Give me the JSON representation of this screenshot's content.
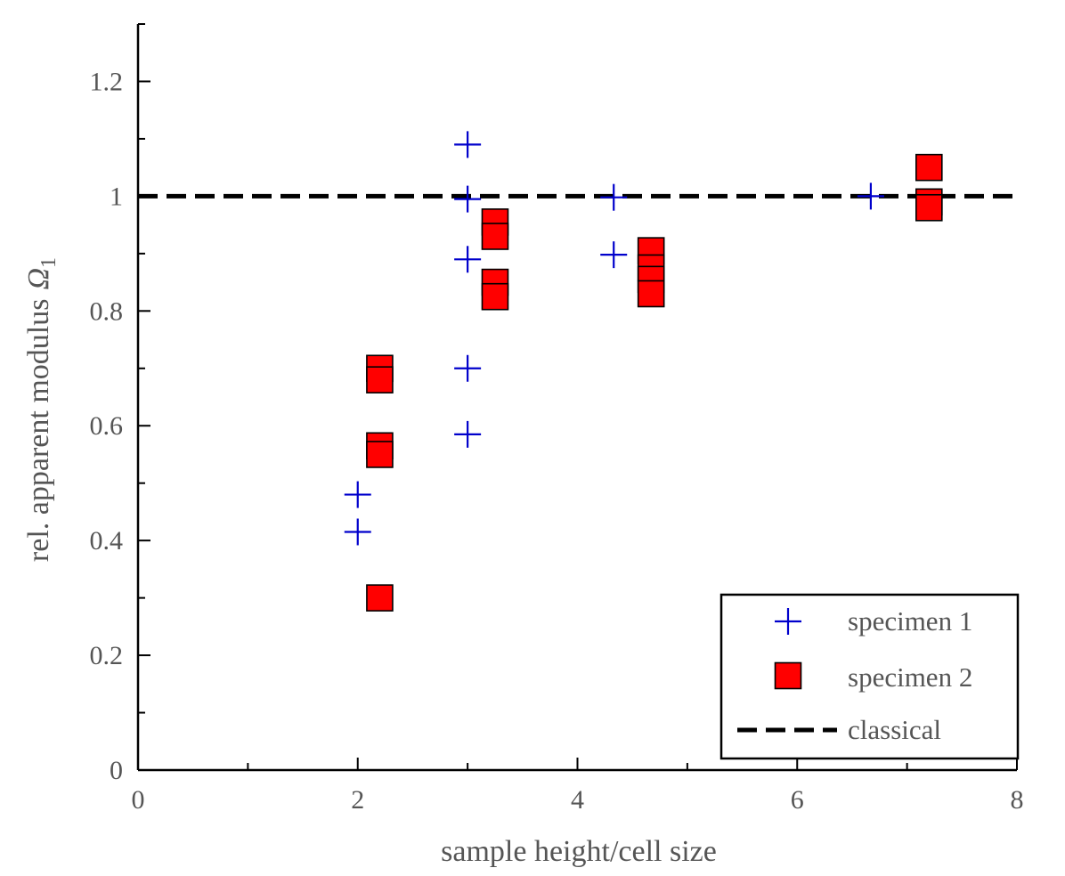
{
  "chart_data": {
    "type": "scatter",
    "xlabel": "sample height/cell size",
    "ylabel": "rel. apparent modulus",
    "ylabel_symbol": "Ω",
    "ylabel_subscript": "1",
    "xlim": [
      0,
      8
    ],
    "ylim": [
      0,
      1.3
    ],
    "xticks": [
      "0",
      "2",
      "4",
      "6",
      "8"
    ],
    "yticks": [
      "0",
      "0.2",
      "0.4",
      "0.6",
      "0.8",
      "1",
      "1.2"
    ],
    "grid": false,
    "legend_position": "bottom-right",
    "series": [
      {
        "name": "specimen 1",
        "marker": "plus",
        "color": "#0000cc",
        "points": [
          [
            2.0,
            0.48
          ],
          [
            2.0,
            0.415
          ],
          [
            3.0,
            1.09
          ],
          [
            3.0,
            0.995
          ],
          [
            3.0,
            0.89
          ],
          [
            3.0,
            0.7
          ],
          [
            3.0,
            0.585
          ],
          [
            4.33,
            0.998
          ],
          [
            4.33,
            0.898
          ],
          [
            6.67,
            1.0
          ]
        ]
      },
      {
        "name": "specimen 2",
        "marker": "square",
        "color": "#ff0000",
        "points": [
          [
            2.2,
            0.7
          ],
          [
            2.2,
            0.68
          ],
          [
            2.2,
            0.565
          ],
          [
            2.2,
            0.55
          ],
          [
            2.2,
            0.3
          ],
          [
            3.25,
            0.955
          ],
          [
            3.25,
            0.93
          ],
          [
            3.25,
            0.85
          ],
          [
            3.25,
            0.825
          ],
          [
            4.67,
            0.905
          ],
          [
            4.67,
            0.875
          ],
          [
            4.67,
            0.855
          ],
          [
            4.67,
            0.83
          ],
          [
            7.2,
            1.05
          ],
          [
            7.2,
            0.99
          ],
          [
            7.2,
            0.98
          ]
        ]
      },
      {
        "name": "classical",
        "marker": "dashed-line",
        "color": "#000000",
        "y": 1.0
      }
    ]
  }
}
